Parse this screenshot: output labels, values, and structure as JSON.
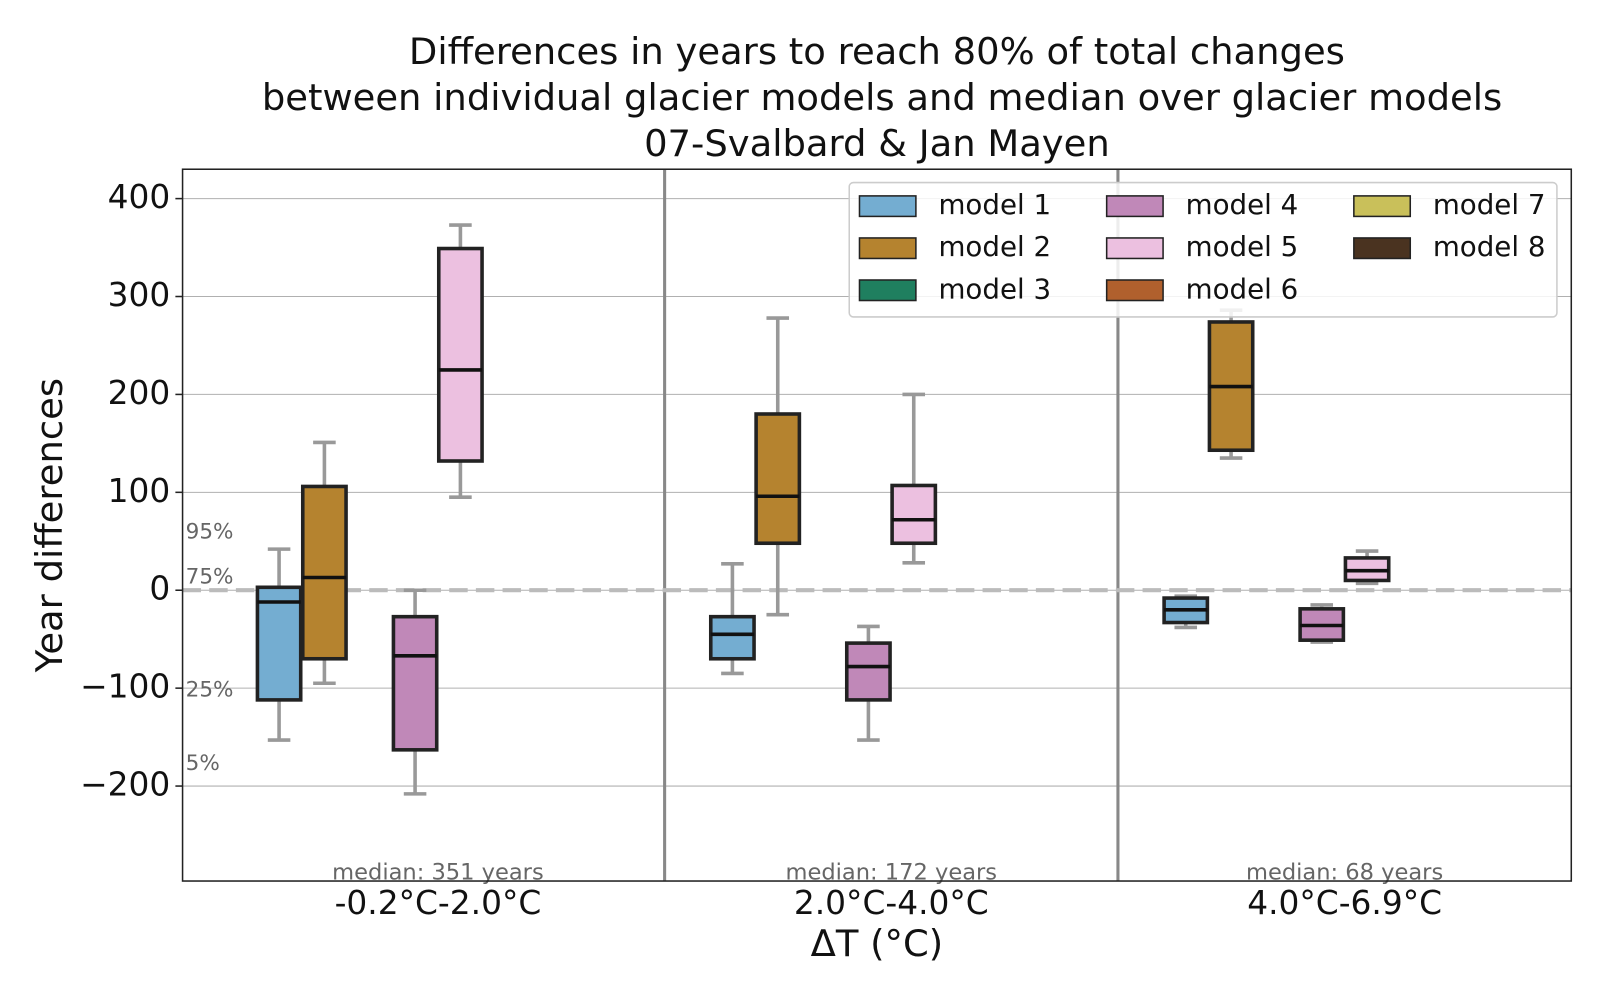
{
  "chart_data": {
    "type": "box",
    "title": [
      "Differences in years to reach 80% of total changes",
      "between individual glacier models and median over glacier models",
      "07-Svalbard & Jan Mayen"
    ],
    "x_label": "ΔT (°C)",
    "y_label": "Year differences",
    "categories": [
      "-0.2°C-2.0°C",
      "2.0°C-4.0°C",
      "4.0°C-6.9°C"
    ],
    "category_notes": [
      "median: 351 years",
      "median: 172 years",
      "median: 68 years"
    ],
    "percentile_labels": [
      "95%",
      "75%",
      "25%",
      "5%"
    ],
    "reference_line": 0,
    "ylim": [
      -297,
      430
    ],
    "yticks": [
      {
        "value": -200,
        "label": "−200"
      },
      {
        "value": -100,
        "label": "−100"
      },
      0,
      100,
      200,
      300,
      400
    ],
    "grid": true,
    "legend_position": "upper right",
    "series": [
      {
        "name": "model 1",
        "color": "#74add1",
        "boxes": [
          {
            "whislo": -153,
            "q1": -112,
            "med": -12,
            "q3": 3,
            "whishi": 42
          },
          {
            "whislo": -85,
            "q1": -70,
            "med": -45,
            "q3": -27,
            "whishi": 27
          },
          {
            "whislo": -38,
            "q1": -33,
            "med": -20,
            "q3": -8,
            "whishi": -6
          }
        ]
      },
      {
        "name": "model 2",
        "color": "#b5832f",
        "boxes": [
          {
            "whislo": -95,
            "q1": -70,
            "med": 13,
            "q3": 106,
            "whishi": 151
          },
          {
            "whislo": -25,
            "q1": 48,
            "med": 96,
            "q3": 180,
            "whishi": 278
          },
          {
            "whislo": 135,
            "q1": 143,
            "med": 208,
            "q3": 274,
            "whishi": 286
          }
        ]
      },
      {
        "name": "model 3",
        "color": "#1f7f5f",
        "boxes": [
          null,
          null,
          null
        ]
      },
      {
        "name": "model 4",
        "color": "#c088b8",
        "boxes": [
          {
            "whislo": -208,
            "q1": -163,
            "med": -67,
            "q3": -27,
            "whishi": 0
          },
          {
            "whislo": -153,
            "q1": -112,
            "med": -78,
            "q3": -54,
            "whishi": -37
          },
          {
            "whislo": -53,
            "q1": -51,
            "med": -36,
            "q3": -19,
            "whishi": -15
          }
        ]
      },
      {
        "name": "model 5",
        "color": "#ecc0e0",
        "boxes": [
          {
            "whislo": 95,
            "q1": 132,
            "med": 225,
            "q3": 349,
            "whishi": 373
          },
          {
            "whislo": 28,
            "q1": 48,
            "med": 72,
            "q3": 107,
            "whishi": 200
          },
          {
            "whislo": 7,
            "q1": 10,
            "med": 20,
            "q3": 33,
            "whishi": 40
          }
        ]
      },
      {
        "name": "model 6",
        "color": "#b0602d",
        "boxes": [
          null,
          null,
          null
        ]
      },
      {
        "name": "model 7",
        "color": "#c9c05a",
        "boxes": [
          null,
          null,
          null
        ]
      },
      {
        "name": "model 8",
        "color": "#4a3320",
        "boxes": [
          null,
          null,
          null
        ]
      }
    ]
  }
}
